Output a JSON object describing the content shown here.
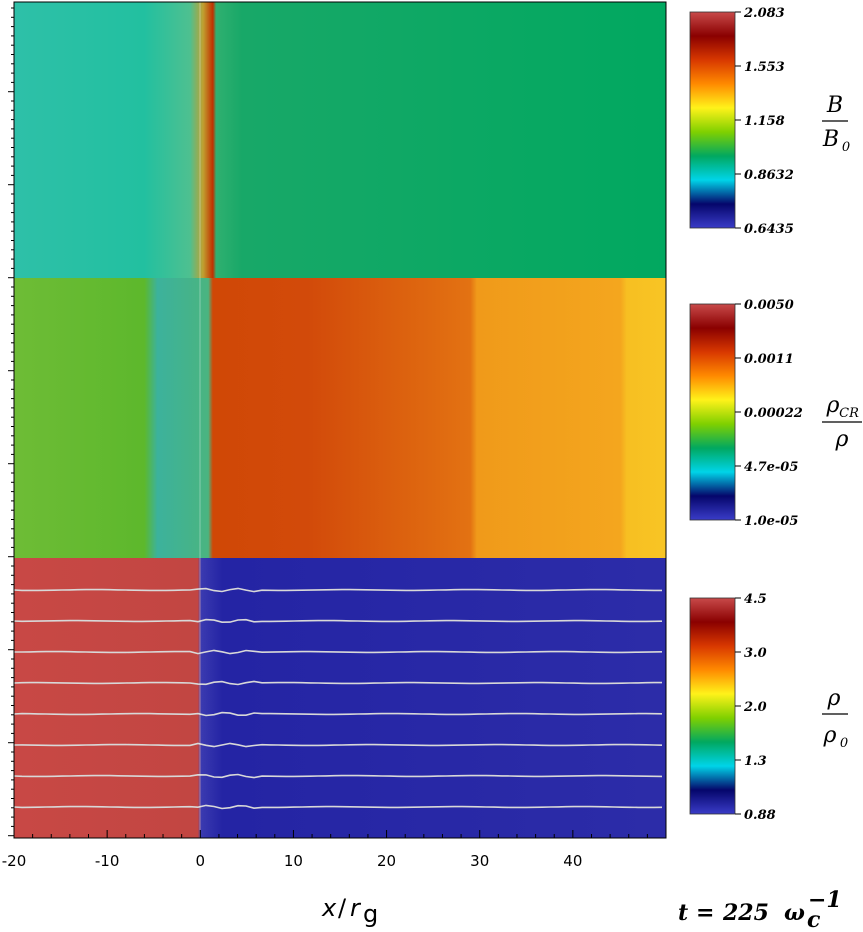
{
  "chart_data": [
    {
      "type": "heatmap",
      "panel": "magnetic-field",
      "quantity_num": "B",
      "quantity_den": "B",
      "quantity_den_sub": "0",
      "colorbar_ticks": [
        "2.083",
        "1.553",
        "1.158",
        "0.8632",
        "0.6435"
      ],
      "colorbar_values": [
        2.083,
        1.553,
        1.158,
        0.8632,
        0.6435
      ],
      "colormap": [
        "#3a3cc8",
        "#05066b",
        "#00d4e8",
        "#01a860",
        "#7fd000",
        "#fff21a",
        "#ff8a00",
        "#d83800",
        "#8a0000",
        "#c84a4a"
      ]
    },
    {
      "type": "heatmap",
      "panel": "cosmic-ray-density",
      "quantity_num": "ρ",
      "quantity_num_sub": "CR",
      "quantity_den": "ρ",
      "colorbar_ticks": [
        "0.0050",
        "0.0011",
        "0.00022",
        "4.7e-05",
        "1.0e-05"
      ],
      "colorbar_values": [
        0.005,
        0.0011,
        0.00022,
        4.7e-05,
        1e-05
      ],
      "colormap": [
        "#3a3cc8",
        "#05066b",
        "#00d4e8",
        "#01a860",
        "#7fd000",
        "#fff21a",
        "#ff8a00",
        "#d83800",
        "#8a0000",
        "#c84a4a"
      ]
    },
    {
      "type": "heatmap",
      "panel": "gas-density",
      "quantity_num": "ρ",
      "quantity_den": "ρ",
      "quantity_den_sub": "0",
      "colorbar_ticks": [
        "4.5",
        "3.0",
        "2.0",
        "1.3",
        "0.88"
      ],
      "colorbar_values": [
        4.5,
        3.0,
        2.0,
        1.3,
        0.88
      ],
      "colormap": [
        "#3a3cc8",
        "#05066b",
        "#00d4e8",
        "#01a860",
        "#7fd000",
        "#fff21a",
        "#ff8a00",
        "#d83800",
        "#8a0000",
        "#c84a4a"
      ],
      "field_lines": 8
    }
  ],
  "x_axis": {
    "ticks": [
      -20,
      -10,
      0,
      10,
      20,
      30,
      40
    ],
    "tick_labels": [
      "-20",
      "-10",
      "0",
      "10",
      "20",
      "30",
      "40"
    ],
    "range": [
      -20,
      50
    ],
    "label_main": "x",
    "label_slash": "/",
    "label_r": "r",
    "label_sub": "g"
  },
  "time": {
    "label": "t",
    "equals": "=",
    "value": "225",
    "unit": "ω",
    "unit_sub": "c",
    "unit_sup": "−1"
  },
  "colors": {
    "b_bg": "#01a860",
    "b_shock": "#c83000",
    "cr_up": "#58b82a",
    "cr_down_a": "#d84e08",
    "cr_down_b": "#f3a51d",
    "rho_up": "#c84845",
    "rho_down": "#2c2ca8",
    "field_line": "#d8d8d8"
  }
}
